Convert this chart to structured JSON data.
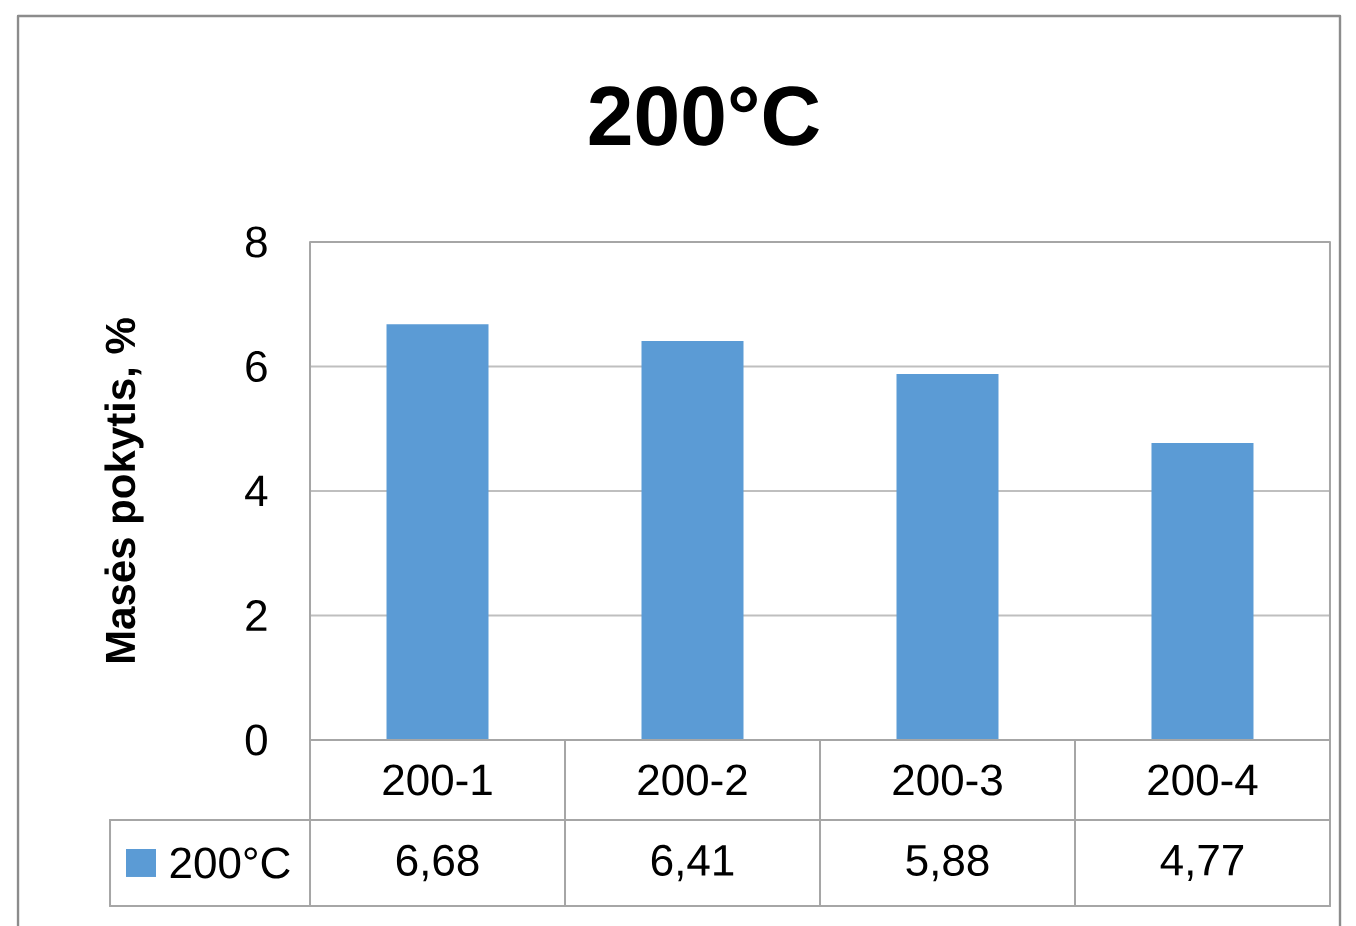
{
  "chart_data": {
    "type": "bar",
    "title": "200°C",
    "ylabel": "Masės pokytis, %",
    "categories": [
      "200-1",
      "200-2",
      "200-3",
      "200-4"
    ],
    "series": [
      {
        "name": "200°C",
        "color": "#5b9bd5",
        "values": [
          6.68,
          6.41,
          5.88,
          4.77
        ],
        "value_labels": [
          "6,68",
          "6,41",
          "5,88",
          "4,77"
        ]
      }
    ],
    "ylim": [
      0,
      8
    ],
    "yticks": [
      0,
      2,
      4,
      6,
      8
    ],
    "grid": "y",
    "legend": "bottom"
  }
}
